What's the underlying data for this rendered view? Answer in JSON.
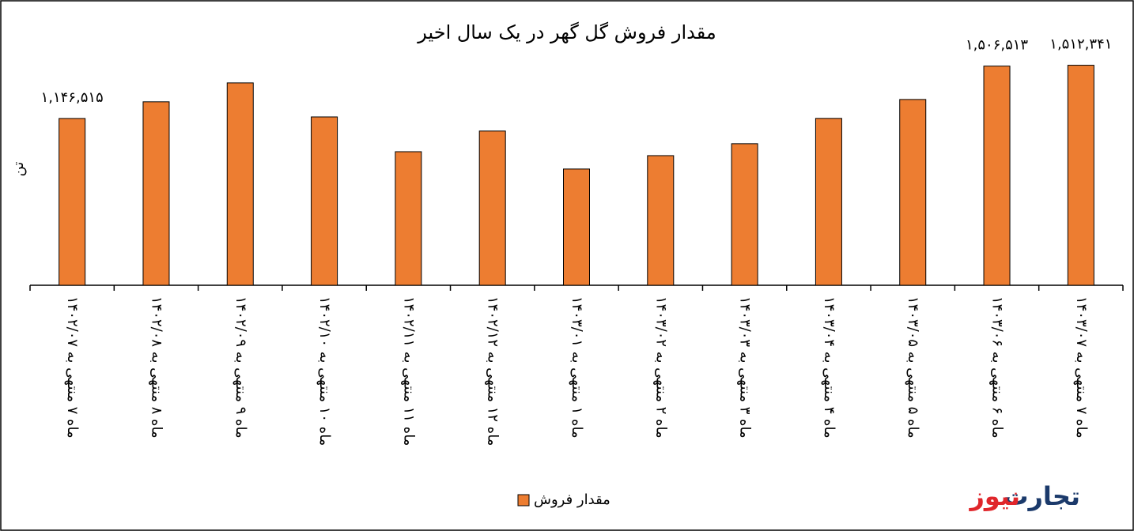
{
  "chart_data": {
    "type": "bar",
    "title": "مقدار فروش گل گهر در یک سال اخیر",
    "y_label": "تن",
    "categories": [
      "ماه ۷ منتهی به ۱۴۰۲/۰۷",
      "ماه ۸ منتهی به ۱۴۰۲/۰۸",
      "ماه ۹ منتهی به ۱۴۰۲/۰۹",
      "ماه ۱۰ منتهی به ۱۴۰۲/۱۰",
      "ماه ۱۱ منتهی به ۱۴۰۲/۱۱",
      "ماه ۱۲ منتهی به ۱۴۰۲/۱۲",
      "ماه ۱ منتهی به ۱۴۰۳/۰۱",
      "ماه ۲ منتهی به ۱۴۰۳/۰۲",
      "ماه ۳ منتهی به ۱۴۰۳/۰۳",
      "ماه ۴ منتهی به ۱۴۰۳/۰۴",
      "ماه ۵ منتهی به ۱۴۰۳/۰۵",
      "ماه ۶ منتهی به ۱۴۰۳/۰۶",
      "ماه ۷ منتهی به ۱۴۰۳/۰۷"
    ],
    "series": [
      {
        "name": "مقدار فروش",
        "color": "#ed7d31",
        "values": [
          1146515,
          1261000,
          1391000,
          1157000,
          918000,
          1060000,
          799000,
          891000,
          973000,
          1147000,
          1277000,
          1506513,
          1512341
        ],
        "value_labels": [
          "۱,۱۴۶,۵۱۵",
          null,
          null,
          null,
          null,
          null,
          null,
          null,
          null,
          null,
          null,
          "۱,۵۰۶,۵۱۳",
          "۱,۵۱۲,۳۴۱"
        ]
      }
    ],
    "ylim": [
      0,
      1700000
    ],
    "legend": "bottom"
  },
  "branding": {
    "part1": "تجارت",
    "part2": "نیوز"
  }
}
